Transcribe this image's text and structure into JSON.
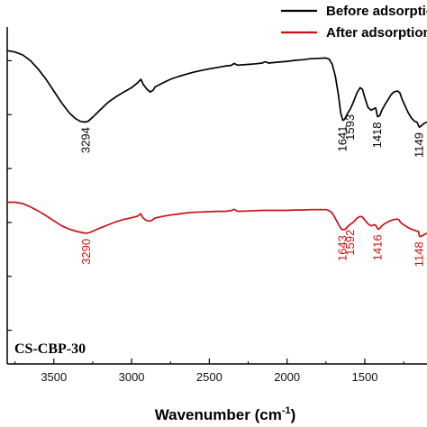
{
  "chart_data": {
    "type": "line",
    "xlabel": "Wavenumber (cm",
    "xlabel_sup": "-1",
    "xlabel_close": ")",
    "x_reversed": true,
    "xlim": [
      3800,
      1100
    ],
    "x_ticks": [
      3500,
      3000,
      2500,
      2000,
      1500
    ],
    "x_tick_labels": [
      "3500",
      "3000",
      "2500",
      "2000",
      "1500"
    ],
    "ylim": [
      0,
      100
    ],
    "grid": false,
    "legend_position": "top-right",
    "annotation": "CS-CBP-30",
    "series": [
      {
        "name": "Before adsorption",
        "color": "#000000",
        "points": [
          [
            3800,
            93
          ],
          [
            3750,
            92.6
          ],
          [
            3700,
            91.7
          ],
          [
            3650,
            90
          ],
          [
            3600,
            87.5
          ],
          [
            3550,
            84.5
          ],
          [
            3500,
            81
          ],
          [
            3450,
            77.5
          ],
          [
            3400,
            74.5
          ],
          [
            3360,
            72.8
          ],
          [
            3330,
            72
          ],
          [
            3300,
            71.8
          ],
          [
            3280,
            72
          ],
          [
            3250,
            73.2
          ],
          [
            3200,
            75.5
          ],
          [
            3150,
            77.7
          ],
          [
            3100,
            79.3
          ],
          [
            3050,
            80.7
          ],
          [
            3000,
            82
          ],
          [
            2960,
            83.5
          ],
          [
            2940,
            84.5
          ],
          [
            2925,
            83
          ],
          [
            2900,
            81.5
          ],
          [
            2880,
            80.7
          ],
          [
            2860,
            81.3
          ],
          [
            2850,
            82.2
          ],
          [
            2800,
            83.4
          ],
          [
            2750,
            84.5
          ],
          [
            2700,
            85.3
          ],
          [
            2650,
            86
          ],
          [
            2600,
            86.6
          ],
          [
            2550,
            87.1
          ],
          [
            2500,
            87.6
          ],
          [
            2450,
            88
          ],
          [
            2400,
            88.4
          ],
          [
            2360,
            88.6
          ],
          [
            2340,
            89.2
          ],
          [
            2320,
            88.7
          ],
          [
            2250,
            88.9
          ],
          [
            2200,
            89.1
          ],
          [
            2160,
            89.3
          ],
          [
            2140,
            89.7
          ],
          [
            2120,
            89.3
          ],
          [
            2050,
            89.6
          ],
          [
            2000,
            89.8
          ],
          [
            1950,
            90.1
          ],
          [
            1900,
            90.3
          ],
          [
            1850,
            90.6
          ],
          [
            1800,
            90.7
          ],
          [
            1750,
            90.8
          ],
          [
            1730,
            90.5
          ],
          [
            1710,
            89
          ],
          [
            1690,
            85.5
          ],
          [
            1670,
            80
          ],
          [
            1655,
            74.5
          ],
          [
            1641,
            72.3
          ],
          [
            1630,
            72.6
          ],
          [
            1615,
            74
          ],
          [
            1593,
            75.7
          ],
          [
            1575,
            77.5
          ],
          [
            1550,
            80.5
          ],
          [
            1530,
            82
          ],
          [
            1515,
            81.5
          ],
          [
            1500,
            79
          ],
          [
            1480,
            76.2
          ],
          [
            1460,
            75.3
          ],
          [
            1440,
            75.8
          ],
          [
            1430,
            76
          ],
          [
            1418,
            73.4
          ],
          [
            1405,
            73.6
          ],
          [
            1390,
            75.3
          ],
          [
            1370,
            77
          ],
          [
            1350,
            78.5
          ],
          [
            1330,
            80
          ],
          [
            1310,
            80.8
          ],
          [
            1290,
            81
          ],
          [
            1275,
            80.5
          ],
          [
            1260,
            78.5
          ],
          [
            1240,
            76.5
          ],
          [
            1220,
            74.5
          ],
          [
            1200,
            73
          ],
          [
            1180,
            72
          ],
          [
            1165,
            71.8
          ],
          [
            1149,
            70.3
          ],
          [
            1140,
            70.5
          ],
          [
            1130,
            71
          ],
          [
            1115,
            71.5
          ],
          [
            1100,
            71.8
          ]
        ],
        "peaks": [
          {
            "x": 3294,
            "label": "3294"
          },
          {
            "x": 1641,
            "label": "1641"
          },
          {
            "x": 1593,
            "label": "1593"
          },
          {
            "x": 1418,
            "label": "1418"
          },
          {
            "x": 1149,
            "label": "1149"
          }
        ]
      },
      {
        "name": "After adsorption",
        "color": "#cc1111",
        "points": [
          [
            3800,
            48
          ],
          [
            3750,
            48
          ],
          [
            3700,
            47.6
          ],
          [
            3650,
            46.6
          ],
          [
            3600,
            45.4
          ],
          [
            3550,
            44
          ],
          [
            3500,
            42.5
          ],
          [
            3450,
            41
          ],
          [
            3400,
            40
          ],
          [
            3350,
            39.3
          ],
          [
            3310,
            38.9
          ],
          [
            3290,
            38.8
          ],
          [
            3270,
            39
          ],
          [
            3240,
            39.6
          ],
          [
            3200,
            40.4
          ],
          [
            3150,
            41.3
          ],
          [
            3100,
            42.2
          ],
          [
            3050,
            42.9
          ],
          [
            3000,
            43.4
          ],
          [
            2960,
            43.9
          ],
          [
            2940,
            44.6
          ],
          [
            2930,
            43.5
          ],
          [
            2910,
            42.7
          ],
          [
            2890,
            42.4
          ],
          [
            2870,
            42.6
          ],
          [
            2850,
            43.3
          ],
          [
            2800,
            43.8
          ],
          [
            2750,
            44.2
          ],
          [
            2700,
            44.5
          ],
          [
            2650,
            44.8
          ],
          [
            2600,
            45
          ],
          [
            2550,
            45.1
          ],
          [
            2500,
            45.2
          ],
          [
            2450,
            45.3
          ],
          [
            2400,
            45.3
          ],
          [
            2360,
            45.5
          ],
          [
            2340,
            45.9
          ],
          [
            2320,
            45.3
          ],
          [
            2250,
            45.4
          ],
          [
            2200,
            45.5
          ],
          [
            2150,
            45.6
          ],
          [
            2100,
            45.6
          ],
          [
            2050,
            45.6
          ],
          [
            2000,
            45.6
          ],
          [
            1950,
            45.7
          ],
          [
            1900,
            45.7
          ],
          [
            1850,
            45.8
          ],
          [
            1800,
            45.8
          ],
          [
            1750,
            45.8
          ],
          [
            1730,
            45.5
          ],
          [
            1710,
            44.8
          ],
          [
            1690,
            43.2
          ],
          [
            1670,
            41.5
          ],
          [
            1655,
            40.3
          ],
          [
            1643,
            39.8
          ],
          [
            1625,
            40
          ],
          [
            1610,
            40.8
          ],
          [
            1592,
            41.5
          ],
          [
            1575,
            42
          ],
          [
            1550,
            43.3
          ],
          [
            1530,
            43.8
          ],
          [
            1515,
            43.6
          ],
          [
            1500,
            42.7
          ],
          [
            1480,
            41.6
          ],
          [
            1460,
            41
          ],
          [
            1440,
            41.3
          ],
          [
            1430,
            41.2
          ],
          [
            1416,
            40
          ],
          [
            1405,
            40.2
          ],
          [
            1390,
            41
          ],
          [
            1370,
            41.7
          ],
          [
            1350,
            42.2
          ],
          [
            1330,
            42.6
          ],
          [
            1310,
            42.9
          ],
          [
            1290,
            43
          ],
          [
            1280,
            42.8
          ],
          [
            1270,
            42
          ],
          [
            1250,
            41.3
          ],
          [
            1230,
            40.7
          ],
          [
            1210,
            40.2
          ],
          [
            1190,
            39.8
          ],
          [
            1170,
            39.5
          ],
          [
            1155,
            39.3
          ],
          [
            1148,
            37.9
          ],
          [
            1140,
            37.8
          ],
          [
            1125,
            38.2
          ],
          [
            1110,
            38.6
          ],
          [
            1100,
            38.8
          ]
        ],
        "peaks": [
          {
            "x": 3290,
            "label": "3290"
          },
          {
            "x": 1643,
            "label": "1643"
          },
          {
            "x": 1592,
            "label": "1592"
          },
          {
            "x": 1416,
            "label": "1416"
          },
          {
            "x": 1148,
            "label": "1148"
          }
        ]
      }
    ]
  }
}
